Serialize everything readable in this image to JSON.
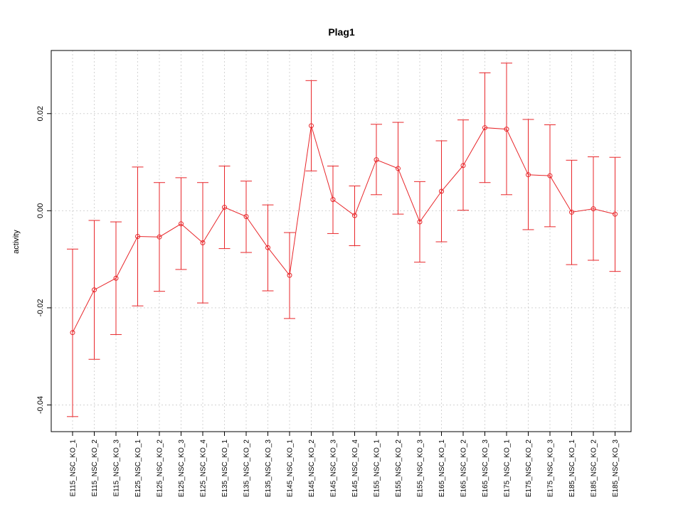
{
  "chart_data": {
    "type": "line",
    "title": "Plag1",
    "xlabel": "",
    "ylabel": "activity",
    "ylim": [
      -0.0455,
      0.033
    ],
    "yticks": [
      -0.04,
      -0.02,
      0.0,
      0.02
    ],
    "ytick_labels": [
      "-0.04",
      "-0.02",
      "0.00",
      "0.02"
    ],
    "grid": true,
    "line_color": "#e8262a",
    "grid_color": "#d3d3d3",
    "categories": [
      "E115_NSC_KO_1",
      "E115_NSC_KO_2",
      "E115_NSC_KO_3",
      "E125_NSC_KO_1",
      "E125_NSC_KO_2",
      "E125_NSC_KO_3",
      "E125_NSC_KO_4",
      "E135_NSC_KO_1",
      "E135_NSC_KO_2",
      "E135_NSC_KO_3",
      "E145_NSC_KO_1",
      "E145_NSC_KO_2",
      "E145_NSC_KO_3",
      "E145_NSC_KO_4",
      "E155_NSC_KO_1",
      "E155_NSC_KO_2",
      "E155_NSC_KO_3",
      "E165_NSC_KO_1",
      "E165_NSC_KO_2",
      "E165_NSC_KO_3",
      "E175_NSC_KO_1",
      "E175_NSC_KO_2",
      "E175_NSC_KO_3",
      "E185_NSC_KO_1",
      "E185_NSC_KO_2",
      "E185_NSC_KO_3"
    ],
    "values": [
      -0.0251,
      -0.0163,
      -0.0139,
      -0.0053,
      -0.0054,
      -0.0027,
      -0.0066,
      0.0007,
      -0.0012,
      -0.0076,
      -0.0133,
      0.0175,
      0.0023,
      -0.001,
      0.0105,
      0.0087,
      -0.0023,
      0.004,
      0.0093,
      0.0171,
      0.0168,
      0.0074,
      0.0072,
      -0.0003,
      0.0004,
      -0.0007
    ],
    "upper": [
      -0.0079,
      -0.002,
      -0.0023,
      0.009,
      0.0058,
      0.0068,
      0.0058,
      0.0092,
      0.0061,
      0.0012,
      -0.0045,
      0.0268,
      0.0092,
      0.0051,
      0.0178,
      0.0182,
      0.006,
      0.0144,
      0.0187,
      0.0284,
      0.0304,
      0.0188,
      0.0177,
      0.0104,
      0.0111,
      0.011
    ],
    "lower": [
      -0.0424,
      -0.0306,
      -0.0255,
      -0.0196,
      -0.0166,
      -0.0121,
      -0.019,
      -0.0078,
      -0.0086,
      -0.0165,
      -0.0222,
      0.0082,
      -0.0047,
      -0.0072,
      0.0033,
      -0.0007,
      -0.0106,
      -0.0064,
      0.0001,
      0.0058,
      0.0033,
      -0.0039,
      -0.0033,
      -0.0111,
      -0.0102,
      -0.0125
    ]
  }
}
